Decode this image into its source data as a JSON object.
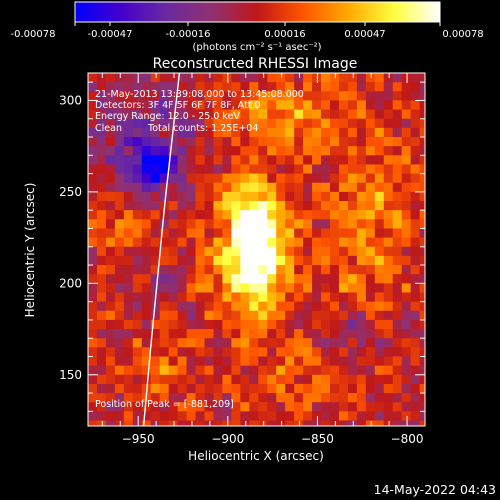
{
  "colorbar": {
    "tick_labels": [
      "-0.00078",
      "-0.00047",
      "-0.00016",
      "0.00016",
      "0.00047",
      "0.00078"
    ],
    "unit_label": "(photons cm⁻² s⁻¹ asec⁻²)"
  },
  "annotation": {
    "time_range": "21-May-2013 13:39:08.000 to 13:45:08.000",
    "detectors": "Detectors: 3F 4F 5F 6F 7F 8F, Att 0",
    "energy_range": "Energy Range: 12.0 - 25.0 keV",
    "clean": "Clean",
    "total_counts": "Total counts: 1.25E+04",
    "peak": "Position of Peak = [-881,209]"
  },
  "footer": {
    "timestamp": "14-May-2022 04:43"
  },
  "chart_data": {
    "type": "heatmap",
    "title": "Reconstructed RHESSI Image",
    "xlabel": "Heliocentric X (arcsec)",
    "ylabel": "Heliocentric Y (arcsec)",
    "xlim": [
      -978,
      -790
    ],
    "ylim": [
      122,
      315
    ],
    "x_ticks": [
      -950,
      -900,
      -850,
      -800
    ],
    "x_tick_labels": [
      "−950",
      "−900",
      "−850",
      "−800"
    ],
    "y_ticks": [
      150,
      200,
      250,
      300
    ],
    "y_tick_labels": [
      "150",
      "200",
      "250",
      "300"
    ],
    "color_range": [
      -0.00078,
      0.00078
    ],
    "colormap": [
      "#0000ff",
      "#4400cc",
      "#6a2aa0",
      "#903070",
      "#c01818",
      "#ff5500",
      "#ffaa00",
      "#ffff40",
      "#ffffff"
    ],
    "peak": {
      "x": -881,
      "y": 209,
      "value": 0.00078
    },
    "sources": [
      {
        "x": -883,
        "y": 214,
        "sx": 11,
        "sy": 22,
        "amp": 1.05
      },
      {
        "x": -889,
        "y": 232,
        "sx": 14,
        "sy": 14,
        "amp": 0.35
      },
      {
        "x": -868,
        "y": 290,
        "sx": 22,
        "sy": 14,
        "amp": 0.45
      },
      {
        "x": -893,
        "y": 255,
        "sx": 9,
        "sy": 9,
        "amp": 0.3
      },
      {
        "x": -820,
        "y": 240,
        "sx": 18,
        "sy": 30,
        "amp": 0.35
      },
      {
        "x": -960,
        "y": 230,
        "sx": 10,
        "sy": 10,
        "amp": 0.3
      },
      {
        "x": -940,
        "y": 150,
        "sx": 12,
        "sy": 12,
        "amp": 0.25
      },
      {
        "x": -860,
        "y": 150,
        "sx": 20,
        "sy": 15,
        "amp": 0.25
      },
      {
        "x": -835,
        "y": 195,
        "sx": 15,
        "sy": 12,
        "amp": 0.2
      },
      {
        "x": -910,
        "y": 200,
        "sx": 15,
        "sy": 15,
        "amp": 0.25
      },
      {
        "x": -940,
        "y": 263,
        "sx": 9,
        "sy": 9,
        "amp": -0.9
      },
      {
        "x": -950,
        "y": 285,
        "sx": 22,
        "sy": 20,
        "amp": -0.35
      },
      {
        "x": -930,
        "y": 195,
        "sx": 10,
        "sy": 10,
        "amp": -0.25
      },
      {
        "x": -830,
        "y": 175,
        "sx": 12,
        "sy": 12,
        "amp": -0.25
      }
    ],
    "limb_curve": {
      "x": [
        -927,
        -931,
        -935,
        -939,
        -943,
        -947
      ],
      "y": [
        315,
        280,
        245,
        205,
        165,
        122
      ]
    }
  }
}
